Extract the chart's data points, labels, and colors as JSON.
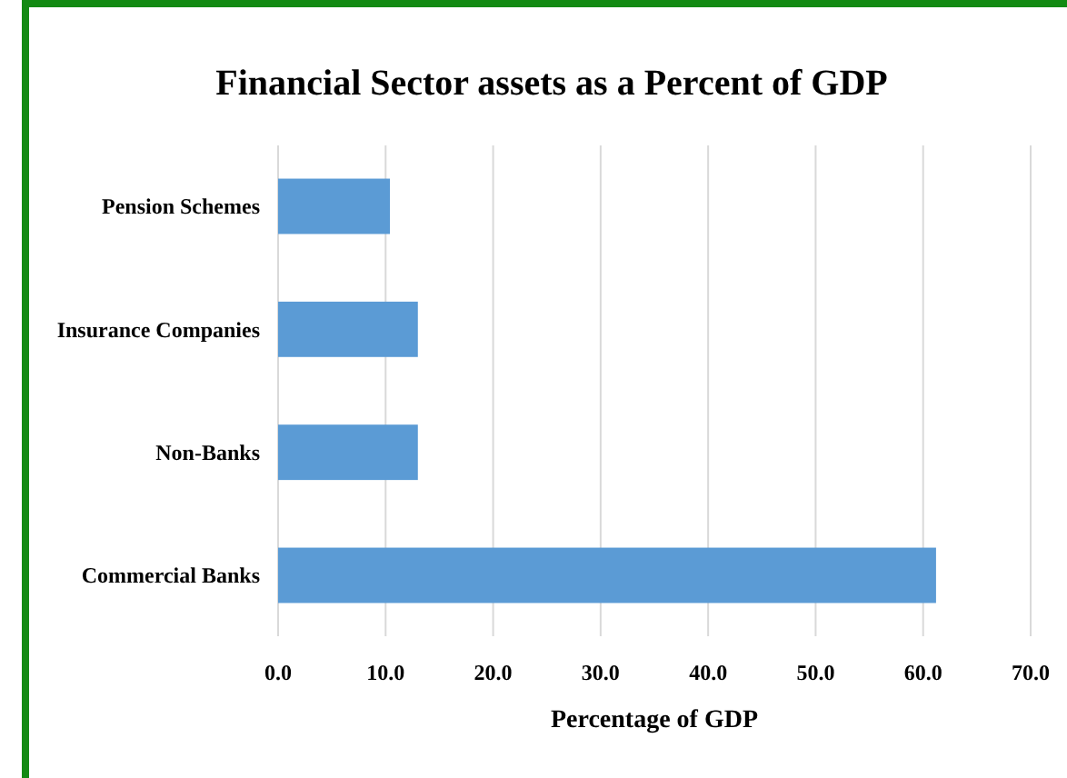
{
  "chart_data": {
    "type": "bar",
    "orientation": "horizontal",
    "title": "Financial Sector assets as a Percent of GDP",
    "xlabel": "Percentage of GDP",
    "categories": [
      "Pension Schemes",
      "Insurance Companies",
      "Non-Banks",
      "Commercial Banks"
    ],
    "values": [
      10.4,
      13.0,
      13.0,
      61.2
    ],
    "color": "#5b9bd5",
    "xlim": [
      0,
      70
    ],
    "xticks": [
      {
        "value": 0,
        "label": "0.0"
      },
      {
        "value": 10,
        "label": "10.0"
      },
      {
        "value": 20,
        "label": "20.0"
      },
      {
        "value": 30,
        "label": "30.0"
      },
      {
        "value": 40,
        "label": "40.0"
      },
      {
        "value": 50,
        "label": "50.0"
      },
      {
        "value": 60,
        "label": "60.0"
      },
      {
        "value": 70,
        "label": "70.0"
      }
    ],
    "grid": "x"
  }
}
